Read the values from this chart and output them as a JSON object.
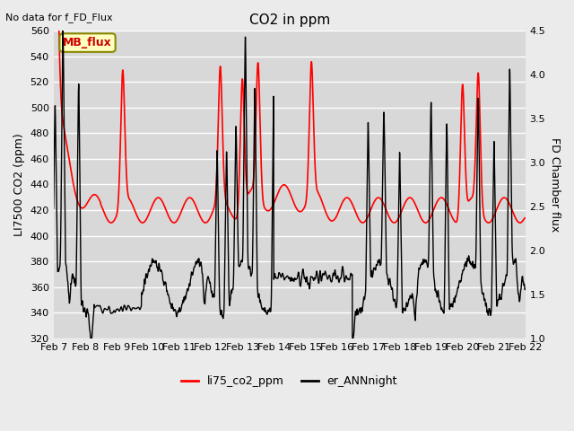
{
  "title": "CO2 in ppm",
  "top_left_text": "No data for f_FD_Flux",
  "ylabel_left": "LI7500 CO2 (ppm)",
  "ylabel_right": "FD Chamber flux",
  "ylim_left": [
    320,
    560
  ],
  "ylim_right": [
    1.0,
    4.5
  ],
  "yticks_left": [
    320,
    340,
    360,
    380,
    400,
    420,
    440,
    460,
    480,
    500,
    520,
    540,
    560
  ],
  "yticks_right": [
    1.0,
    1.5,
    2.0,
    2.5,
    3.0,
    3.5,
    4.0,
    4.5
  ],
  "xtick_labels": [
    "Feb 7",
    "Feb 8",
    "Feb 9",
    "Feb 10",
    "Feb 11",
    "Feb 12",
    "Feb 13",
    "Feb 14",
    "Feb 15",
    "Feb 16",
    "Feb 17",
    "Feb 18",
    "Feb 19",
    "Feb 20",
    "Feb 21",
    "Feb 22"
  ],
  "legend_entries": [
    {
      "label": "li75_co2_ppm",
      "color": "#ff0000",
      "lw": 1.5
    },
    {
      "label": "er_ANNnight",
      "color": "#000000",
      "lw": 1.5
    }
  ],
  "mb_flux_box": {
    "text": "MB_flux",
    "color": "#cc0000",
    "bg": "#ffffc0"
  },
  "background_color": "#ebebeb",
  "plot_bg_color": "#d8d8d8",
  "grid_color": "#ffffff",
  "seed": 42,
  "n_points": 3600,
  "line_color_red": "#ff0000",
  "line_color_black": "#000000"
}
